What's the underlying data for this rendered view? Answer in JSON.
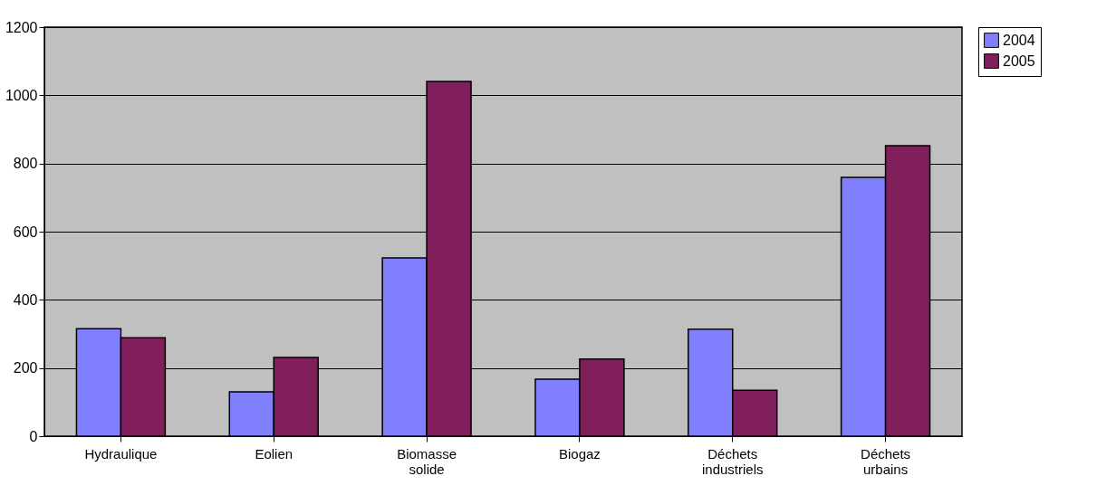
{
  "chart_data": {
    "type": "bar",
    "categories": [
      "Hydraulique",
      "Eolien",
      "Biomasse solide",
      "Biogaz",
      "Déchets industriels",
      "Déchets urbains"
    ],
    "series": [
      {
        "name": "2004",
        "color": "#8080ff",
        "values": [
          315,
          130,
          523,
          167,
          314,
          759
        ]
      },
      {
        "name": "2005",
        "color": "#801f5c",
        "values": [
          289,
          231,
          1041,
          226,
          135,
          852
        ]
      }
    ],
    "ylim": [
      0,
      1200
    ],
    "yticks": [
      0,
      200,
      400,
      600,
      800,
      1000,
      1200
    ],
    "grid": "y",
    "legend": "right"
  }
}
